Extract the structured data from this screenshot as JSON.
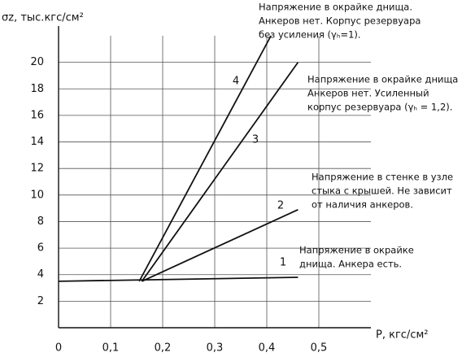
{
  "chart_data": {
    "type": "line",
    "y_label": "σz, тыс.кгс/см²",
    "x_label": "P, кгс/см²",
    "xlim": [
      0,
      0.6
    ],
    "ylim": [
      0,
      22
    ],
    "xticks": [
      0,
      {
        "value": 0.1,
        "label": "0,1"
      },
      {
        "value": 0.2,
        "label": "0,2"
      },
      {
        "value": 0.3,
        "label": "0,3"
      },
      {
        "value": 0.4,
        "label": "0,4"
      },
      {
        "value": 0.5,
        "label": "0,5"
      }
    ],
    "yticks": [
      2,
      4,
      6,
      8,
      10,
      12,
      14,
      16,
      18,
      20
    ],
    "grid": true,
    "series": [
      {
        "name": "1",
        "color": "#111111",
        "x": [
          0,
          0.46
        ],
        "values": [
          3.5,
          3.8
        ]
      },
      {
        "name": "2",
        "color": "#111111",
        "x": [
          0.16,
          0.46
        ],
        "values": [
          3.5,
          8.9
        ]
      },
      {
        "name": "3",
        "color": "#111111",
        "x": [
          0.16,
          0.46
        ],
        "values": [
          3.5,
          20
        ]
      },
      {
        "name": "4",
        "color": "#111111",
        "x": [
          0.155,
          0.408
        ],
        "values": [
          3.5,
          22
        ]
      }
    ],
    "annotations": [
      [
        "Напряжение в окрайке днища.",
        "Анкеров нет. Корпус резервуара",
        "без усиления (γₕ=1)."
      ],
      [
        "Напряжение в окрайке днища",
        "Анкеров нет. Усиленный",
        "корпус резервуара (γₕ = 1,2)."
      ],
      [
        "Напряжение в стенке в узле",
        "стыка с крышей. Не зависит",
        "от наличия анкеров."
      ],
      [
        "Напряжение в окрайке",
        "днища. Анкера есть."
      ]
    ]
  }
}
